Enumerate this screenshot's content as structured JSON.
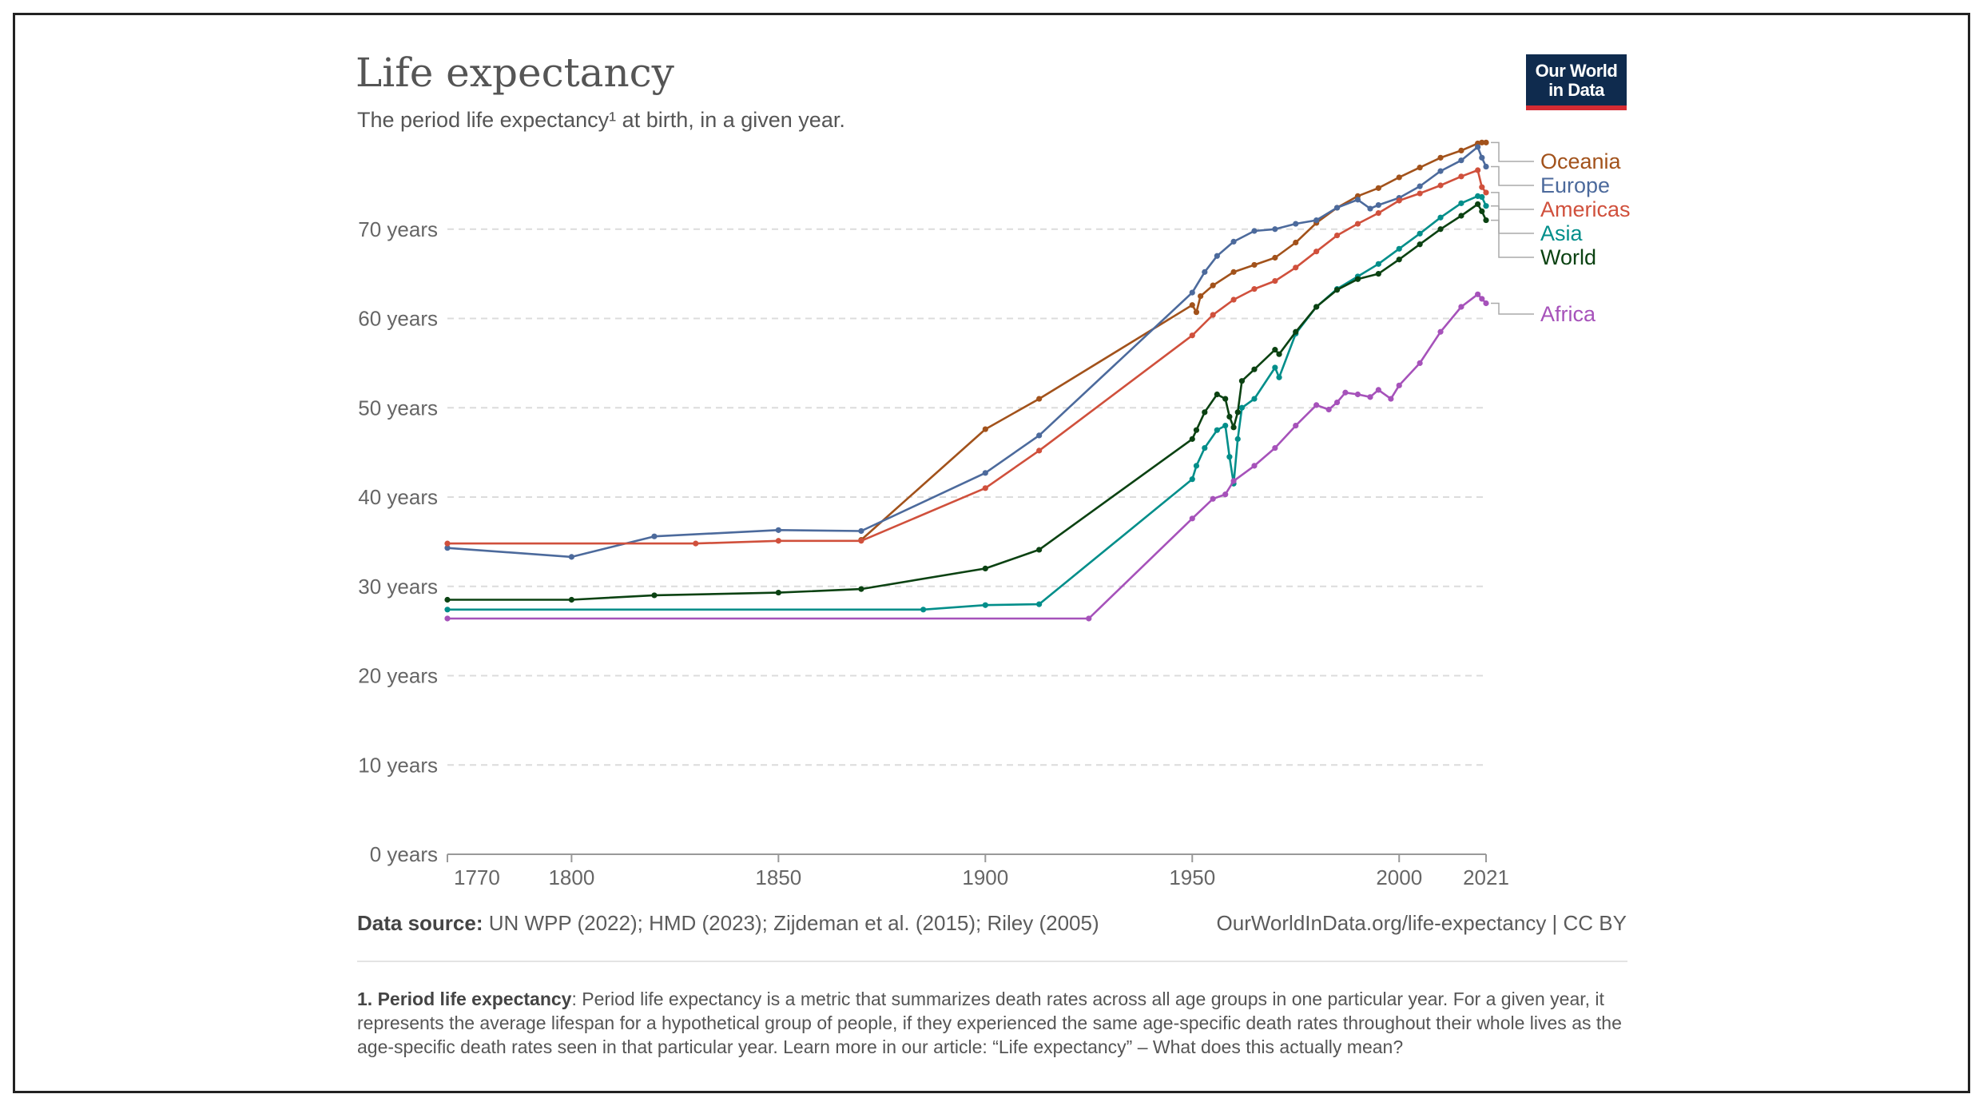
{
  "header": {
    "title": "Life expectancy",
    "subtitle": "The period life expectancy¹ at birth, in a given year.",
    "logo_line1": "Our World",
    "logo_line2": "in Data"
  },
  "footer": {
    "source_label": "Data source:",
    "source_text": " UN WPP (2022); HMD (2023); Zijdeman et al. (2015); Riley (2005)",
    "url_text": "OurWorldInData.org/life-expectancy | CC BY",
    "note_label": "1. Period life expectancy",
    "note_text": ": Period life expectancy is a metric that summarizes death rates across all age groups in one particular year. For a given year, it represents the average lifespan for a hypothetical group of people, if they experienced the same age-specific death rates throughout their whole lives as the age-specific death rates seen in that particular year. Learn more in our article: “Life expectancy” – What does this actually mean?"
  },
  "chart_data": {
    "type": "line",
    "title": "Life expectancy",
    "subtitle": "The period life expectancy¹ at birth, in a given year.",
    "xlim": [
      1770,
      2021
    ],
    "ylim": [
      0,
      80
    ],
    "x_ticks": [
      {
        "value": 1770,
        "label": "1770"
      },
      {
        "value": 1800,
        "label": "1800"
      },
      {
        "value": 1850,
        "label": "1850"
      },
      {
        "value": 1900,
        "label": "1900"
      },
      {
        "value": 1950,
        "label": "1950"
      },
      {
        "value": 2000,
        "label": "2000"
      },
      {
        "value": 2021,
        "label": "2021"
      }
    ],
    "y_ticks": [
      {
        "value": 0,
        "label": "0 years"
      },
      {
        "value": 10,
        "label": "10 years"
      },
      {
        "value": 20,
        "label": "20 years"
      },
      {
        "value": 30,
        "label": "30 years"
      },
      {
        "value": 40,
        "label": "40 years"
      },
      {
        "value": 50,
        "label": "50 years"
      },
      {
        "value": 60,
        "label": "60 years"
      },
      {
        "value": 70,
        "label": "70 years"
      }
    ],
    "grid": "horizontal dashed",
    "legend": "right, labels at line ends",
    "series": [
      {
        "name": "Oceania",
        "color": "#a2521b",
        "x": [
          1870,
          1900,
          1913,
          1950,
          1951,
          1952,
          1955,
          1960,
          1965,
          1970,
          1975,
          1980,
          1985,
          1990,
          1995,
          2000,
          2005,
          2010,
          2015,
          2019,
          2020,
          2021
        ],
        "y": [
          35.2,
          47.6,
          51.0,
          61.5,
          60.7,
          62.5,
          63.7,
          65.2,
          66.0,
          66.8,
          68.5,
          70.7,
          72.4,
          73.7,
          74.6,
          75.8,
          76.9,
          78.0,
          78.8,
          79.6,
          79.7,
          79.7
        ]
      },
      {
        "name": "Europe",
        "color": "#4c6a9c",
        "x": [
          1770,
          1800,
          1820,
          1850,
          1870,
          1900,
          1913,
          1950,
          1953,
          1956,
          1960,
          1965,
          1970,
          1975,
          1980,
          1985,
          1990,
          1993,
          1995,
          2000,
          2005,
          2010,
          2015,
          2019,
          2020,
          2021
        ],
        "y": [
          34.3,
          33.3,
          35.6,
          36.3,
          36.2,
          42.7,
          46.9,
          62.9,
          65.2,
          67.0,
          68.6,
          69.8,
          70.0,
          70.6,
          71.0,
          72.4,
          73.3,
          72.3,
          72.7,
          73.5,
          74.8,
          76.5,
          77.7,
          79.2,
          78.0,
          77.0
        ]
      },
      {
        "name": "Americas",
        "color": "#d0503c",
        "x": [
          1770,
          1830,
          1850,
          1870,
          1900,
          1913,
          1950,
          1955,
          1960,
          1965,
          1970,
          1975,
          1980,
          1985,
          1990,
          1995,
          2000,
          2005,
          2010,
          2015,
          2019,
          2020,
          2021
        ],
        "y": [
          34.8,
          34.8,
          35.1,
          35.1,
          41.0,
          45.2,
          58.1,
          60.4,
          62.1,
          63.3,
          64.2,
          65.7,
          67.5,
          69.3,
          70.6,
          71.8,
          73.2,
          74.0,
          74.9,
          75.9,
          76.6,
          74.7,
          74.1
        ]
      },
      {
        "name": "Asia",
        "color": "#018e8a",
        "x": [
          1770,
          1885,
          1900,
          1913,
          1950,
          1951,
          1953,
          1956,
          1958,
          1959,
          1960,
          1961,
          1962,
          1965,
          1970,
          1971,
          1975,
          1980,
          1985,
          1990,
          1995,
          2000,
          2005,
          2010,
          2015,
          2019,
          2020,
          2021
        ],
        "y": [
          27.4,
          27.4,
          27.9,
          28.0,
          42.0,
          43.5,
          45.5,
          47.5,
          48.0,
          44.5,
          41.5,
          46.5,
          50.0,
          51.0,
          54.5,
          53.4,
          58.3,
          61.3,
          63.3,
          64.7,
          66.1,
          67.8,
          69.5,
          71.3,
          72.9,
          73.7,
          73.6,
          72.6
        ]
      },
      {
        "name": "World",
        "color": "#0b4212",
        "x": [
          1770,
          1800,
          1820,
          1850,
          1870,
          1900,
          1913,
          1950,
          1951,
          1953,
          1956,
          1958,
          1959,
          1960,
          1961,
          1962,
          1965,
          1970,
          1971,
          1975,
          1980,
          1985,
          1990,
          1995,
          2000,
          2005,
          2010,
          2015,
          2019,
          2020,
          2021
        ],
        "y": [
          28.5,
          28.5,
          29.0,
          29.3,
          29.7,
          32.0,
          34.1,
          46.5,
          47.5,
          49.5,
          51.5,
          51.0,
          49.0,
          47.8,
          49.5,
          53.0,
          54.3,
          56.5,
          56.0,
          58.5,
          61.3,
          63.2,
          64.4,
          65.0,
          66.6,
          68.3,
          70.0,
          71.5,
          72.8,
          72.0,
          71.0
        ]
      },
      {
        "name": "Africa",
        "color": "#a652ba",
        "x": [
          1770,
          1925,
          1950,
          1955,
          1958,
          1960,
          1965,
          1970,
          1975,
          1980,
          1983,
          1985,
          1987,
          1990,
          1993,
          1995,
          1998,
          2000,
          2005,
          2010,
          2015,
          2019,
          2020,
          2021
        ],
        "y": [
          26.4,
          26.4,
          37.6,
          39.8,
          40.3,
          41.8,
          43.5,
          45.5,
          48.0,
          50.3,
          49.8,
          50.6,
          51.7,
          51.5,
          51.2,
          52.0,
          51.0,
          52.5,
          55.0,
          58.5,
          61.3,
          62.7,
          62.2,
          61.7
        ]
      }
    ]
  }
}
